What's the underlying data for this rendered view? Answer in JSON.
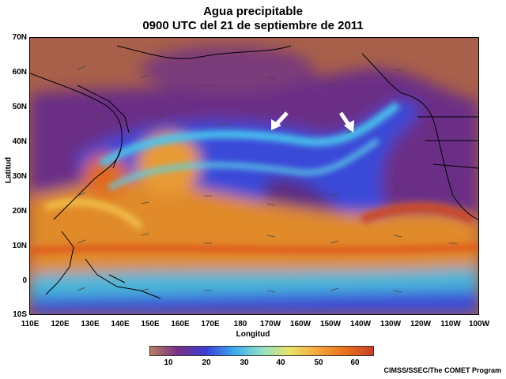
{
  "title_line1": "Agua precipitable",
  "title_line2": "0900 UTC del 21 de septiembre de 2011",
  "y_axis_label": "Latitud",
  "x_axis_label": "Longitud",
  "lat_ticks": [
    "70N",
    "60N",
    "50N",
    "40N",
    "30N",
    "20N",
    "10N",
    "0",
    "10S"
  ],
  "lon_ticks": [
    "110E",
    "120E",
    "130E",
    "140E",
    "150E",
    "160E",
    "170E",
    "180",
    "170W",
    "160W",
    "150W",
    "140W",
    "130W",
    "120W",
    "110W",
    "100W"
  ],
  "colorbar": {
    "ticks": [
      "10",
      "20",
      "30",
      "40",
      "50",
      "60"
    ],
    "colors": [
      "#b97d66",
      "#7a2f86",
      "#3a3fd6",
      "#3aa9ef",
      "#8fe0c8",
      "#e9e46a",
      "#f5a53a",
      "#e8701c",
      "#c8402a"
    ]
  },
  "credit": "CIMSS/SSEC/The COMET Program"
}
